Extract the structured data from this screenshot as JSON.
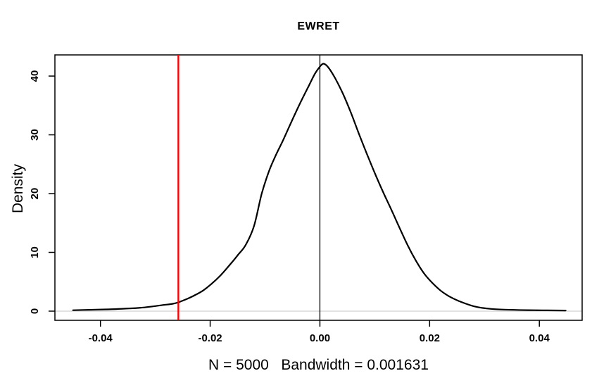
{
  "figure": {
    "background": "#FFFFFF"
  },
  "chart_data": {
    "type": "line",
    "subtype": "kernel-density",
    "title": "EWRET",
    "xlabel": "N = 5000   Bandwidth = 0.001631",
    "ylabel": "Density",
    "n": 5000,
    "bandwidth": 0.001631,
    "xlim": [
      -0.0483,
      0.0478
    ],
    "ylim": [
      -1.56,
      43.6
    ],
    "grid": false,
    "legend": null,
    "axis_color": "#000000",
    "x_ticks": {
      "values": [
        -0.04,
        -0.02,
        0,
        0.02,
        0.04
      ],
      "labels": [
        "-0.04",
        "-0.02",
        "0.00",
        "0.02",
        "0.04"
      ]
    },
    "y_ticks": {
      "values": [
        0,
        10,
        20,
        30,
        40
      ],
      "labels": [
        "0",
        "10",
        "20",
        "30",
        "40"
      ]
    },
    "series": [
      {
        "name": "density-curve",
        "color": "#000000",
        "line_width": 2.2,
        "points": [
          [
            -0.045,
            0.15
          ],
          [
            -0.042,
            0.22
          ],
          [
            -0.039,
            0.3
          ],
          [
            -0.036,
            0.4
          ],
          [
            -0.033,
            0.55
          ],
          [
            -0.0305,
            0.8
          ],
          [
            -0.0285,
            1.05
          ],
          [
            -0.0268,
            1.25
          ],
          [
            -0.0258,
            1.5
          ],
          [
            -0.0243,
            2.05
          ],
          [
            -0.0228,
            2.7
          ],
          [
            -0.0213,
            3.5
          ],
          [
            -0.0198,
            4.6
          ],
          [
            -0.0181,
            6.1
          ],
          [
            -0.0164,
            7.9
          ],
          [
            -0.0149,
            9.6
          ],
          [
            -0.0135,
            11.3
          ],
          [
            -0.012,
            14.5
          ],
          [
            -0.0106,
            20.0
          ],
          [
            -0.0092,
            24.0
          ],
          [
            -0.0079,
            26.8
          ],
          [
            -0.0066,
            29.3
          ],
          [
            -0.0051,
            32.4
          ],
          [
            -0.0036,
            35.4
          ],
          [
            -0.0021,
            38.2
          ],
          [
            -0.0009,
            40.4
          ],
          [
            0.0,
            41.6
          ],
          [
            0.0007,
            42.1
          ],
          [
            0.0016,
            41.4
          ],
          [
            0.0028,
            39.6
          ],
          [
            0.0042,
            37.0
          ],
          [
            0.0056,
            33.9
          ],
          [
            0.0071,
            30.2
          ],
          [
            0.0085,
            26.9
          ],
          [
            0.01,
            23.5
          ],
          [
            0.0115,
            20.3
          ],
          [
            0.013,
            17.3
          ],
          [
            0.0145,
            14.2
          ],
          [
            0.016,
            11.2
          ],
          [
            0.0175,
            8.6
          ],
          [
            0.019,
            6.4
          ],
          [
            0.0205,
            4.8
          ],
          [
            0.022,
            3.5
          ],
          [
            0.0235,
            2.55
          ],
          [
            0.025,
            1.85
          ],
          [
            0.0265,
            1.3
          ],
          [
            0.028,
            0.85
          ],
          [
            0.0296,
            0.55
          ],
          [
            0.0312,
            0.38
          ],
          [
            0.0332,
            0.27
          ],
          [
            0.0355,
            0.21
          ],
          [
            0.038,
            0.17
          ],
          [
            0.0405,
            0.14
          ],
          [
            0.043,
            0.12
          ],
          [
            0.0448,
            0.11
          ]
        ]
      }
    ],
    "reference_lines": {
      "vertical": [
        {
          "name": "zero-vline",
          "x": 0,
          "color": "#000000",
          "width": 1.3
        },
        {
          "name": "red-marker-vline",
          "x": -0.0258,
          "color": "#FF0000",
          "width": 2.4
        }
      ],
      "horizontal": [
        {
          "name": "zero-hline",
          "y": 0,
          "color": "#D9D9D9",
          "width": 1.5
        }
      ]
    }
  }
}
